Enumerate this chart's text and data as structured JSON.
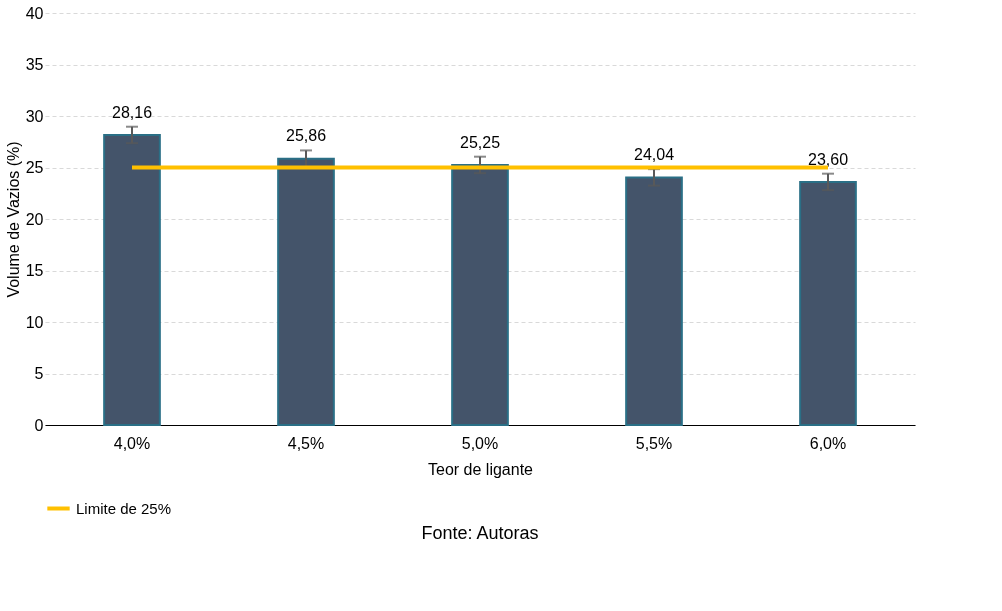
{
  "chart_data": {
    "type": "bar",
    "xlabel": "Teor de ligante",
    "ylabel": "Volume de Vazios (%)",
    "categories": [
      "4,0%",
      "4,5%",
      "5,0%",
      "5,5%",
      "6,0%"
    ],
    "series": [
      {
        "color": "#44546a",
        "values": [
          28.16,
          25.86,
          25.25,
          24.04,
          23.6
        ],
        "errors": [
          0.8,
          0.8,
          0.8,
          0.8,
          0.8
        ],
        "value_labels": [
          "28,16",
          "25,86",
          "25,25",
          "24,04",
          "23,60"
        ]
      },
      {
        "type": "line",
        "name": "Limite de 25%",
        "color": "#ffc000",
        "values": [
          25,
          25,
          25,
          25,
          25
        ]
      }
    ],
    "ylim": [
      0,
      40
    ],
    "yticks": [
      0,
      5,
      10,
      15,
      20,
      25,
      30,
      35,
      40
    ],
    "grid": "y",
    "legend": "bottom",
    "annotations": [
      "Fonte: Autoras"
    ]
  }
}
